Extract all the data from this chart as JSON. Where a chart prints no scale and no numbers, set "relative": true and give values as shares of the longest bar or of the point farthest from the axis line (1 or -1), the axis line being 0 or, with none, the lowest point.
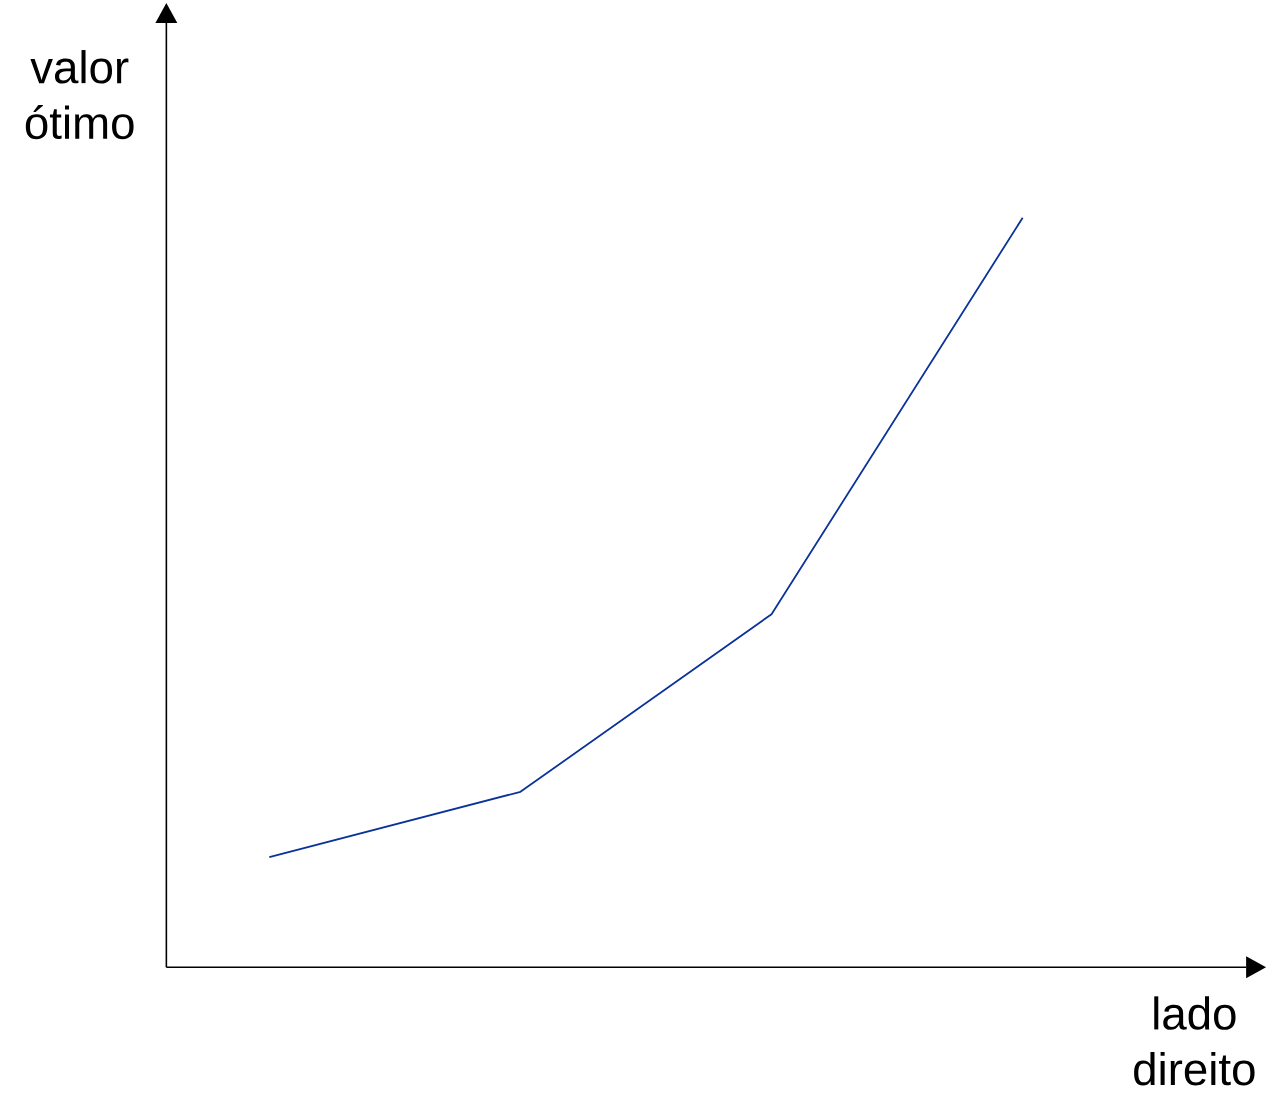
{
  "chart_data": {
    "type": "line",
    "relative": true,
    "xlabel": "lado direito",
    "ylabel": "valor ótimo",
    "categories": [
      null,
      null,
      null,
      null
    ],
    "series": [
      {
        "color": "#0a3399",
        "values": [
          0.147,
          0.234,
          0.471,
          1
        ]
      }
    ]
  }
}
